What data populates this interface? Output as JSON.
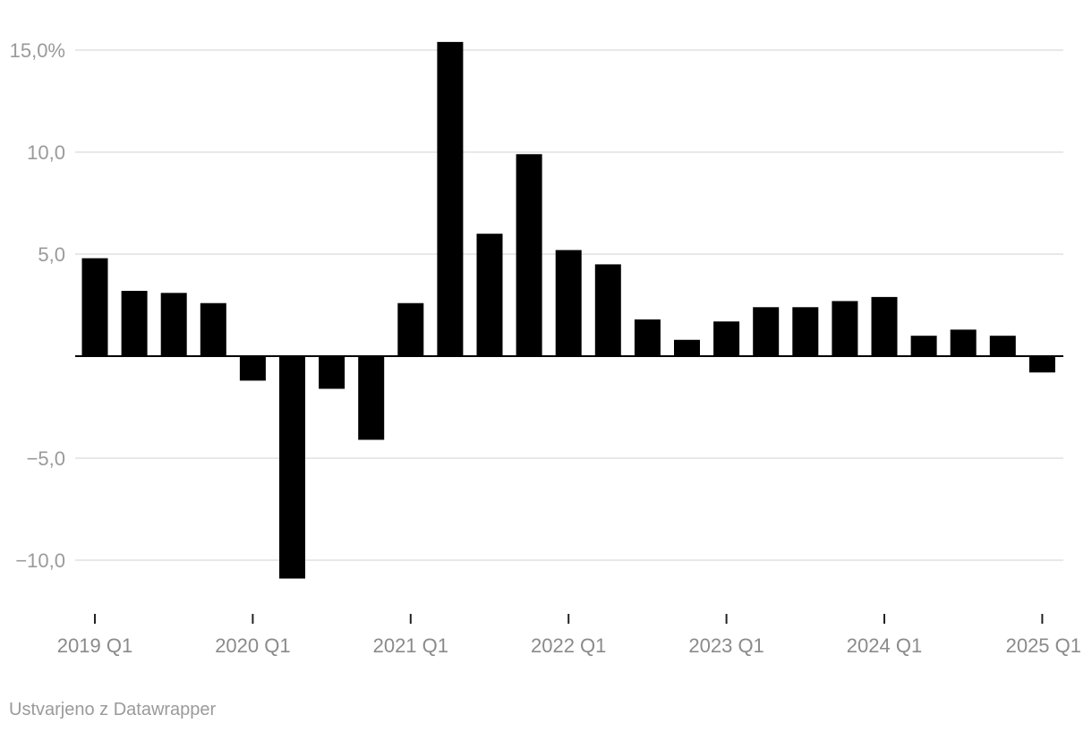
{
  "chart_data": {
    "type": "bar",
    "categories": [
      "2019 Q1",
      "2019 Q2",
      "2019 Q3",
      "2019 Q4",
      "2020 Q1",
      "2020 Q2",
      "2020 Q3",
      "2020 Q4",
      "2021 Q1",
      "2021 Q2",
      "2021 Q3",
      "2021 Q4",
      "2022 Q1",
      "2022 Q2",
      "2022 Q3",
      "2022 Q4",
      "2023 Q1",
      "2023 Q2",
      "2023 Q3",
      "2023 Q4",
      "2024 Q1",
      "2024 Q2",
      "2024 Q3",
      "2024 Q4",
      "2025 Q1"
    ],
    "values": [
      4.8,
      3.2,
      3.1,
      2.6,
      -1.2,
      -10.9,
      -1.6,
      -4.1,
      2.6,
      15.4,
      6.0,
      9.9,
      5.2,
      4.5,
      1.8,
      0.8,
      1.7,
      2.4,
      2.4,
      2.7,
      2.9,
      1.0,
      1.3,
      1.0,
      -0.8
    ],
    "x_tick_labels": [
      "2019 Q1",
      "2020 Q1",
      "2021 Q1",
      "2022 Q1",
      "2023 Q1",
      "2024 Q1",
      "2025 Q1"
    ],
    "x_tick_indices": [
      0,
      4,
      8,
      12,
      16,
      20,
      24
    ],
    "y_ticks": [
      15,
      10,
      5,
      -5,
      -10
    ],
    "y_tick_labels": [
      "15,0%",
      "10,0",
      "5,0",
      "−5,0",
      "−10,0"
    ],
    "ylim": [
      -12,
      16
    ],
    "grid": true,
    "bar_color": "#000000",
    "grid_color": "#e0e0e0",
    "title": "",
    "xlabel": "",
    "ylabel": ""
  },
  "credit": "Ustvarjeno z Datawrapper"
}
